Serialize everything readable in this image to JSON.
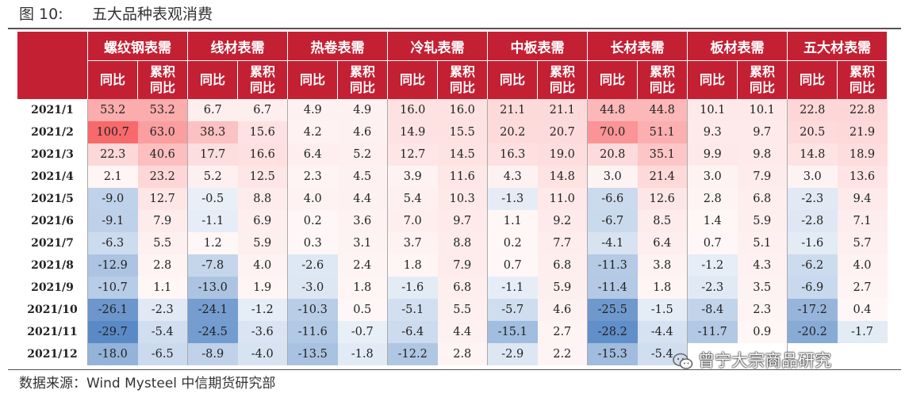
{
  "figure": {
    "number": "图 10:",
    "title": "五大品种表观消费"
  },
  "source": "数据来源：Wind Mysteel 中信期货研究部",
  "watermark": "曾宁大宗商品研究",
  "table": {
    "groups": [
      "螺纹钢表需",
      "线材表需",
      "热卷表需",
      "冷轧表需",
      "中板表需",
      "长材表需",
      "板材表需",
      "五大材表需"
    ],
    "sub_headers": [
      "同比",
      "累积同比"
    ],
    "rows": [
      {
        "date": "2021/1",
        "values": [
          "53.2",
          "53.2",
          "6.7",
          "6.7",
          "4.9",
          "4.9",
          "16.0",
          "16.0",
          "21.1",
          "21.1",
          "44.8",
          "44.8",
          "10.1",
          "10.1",
          "22.8",
          "22.8"
        ]
      },
      {
        "date": "2021/2",
        "values": [
          "100.7",
          "63.0",
          "38.3",
          "15.6",
          "4.2",
          "4.6",
          "14.9",
          "15.5",
          "20.2",
          "20.7",
          "70.0",
          "51.1",
          "9.3",
          "9.7",
          "20.5",
          "21.9"
        ]
      },
      {
        "date": "2021/3",
        "values": [
          "22.3",
          "40.6",
          "17.7",
          "16.6",
          "6.4",
          "5.2",
          "12.7",
          "14.5",
          "16.3",
          "19.0",
          "20.8",
          "35.1",
          "9.9",
          "9.8",
          "14.8",
          "18.9"
        ]
      },
      {
        "date": "2021/4",
        "values": [
          "2.1",
          "23.2",
          "5.2",
          "12.5",
          "2.3",
          "4.5",
          "3.9",
          "11.6",
          "4.3",
          "14.8",
          "3.0",
          "21.4",
          "3.0",
          "7.9",
          "3.0",
          "13.6"
        ]
      },
      {
        "date": "2021/5",
        "values": [
          "-9.0",
          "12.7",
          "-0.5",
          "8.8",
          "4.0",
          "4.4",
          "5.4",
          "10.3",
          "-1.3",
          "11.0",
          "-6.6",
          "12.6",
          "2.8",
          "6.8",
          "-2.3",
          "9.4"
        ]
      },
      {
        "date": "2021/6",
        "values": [
          "-9.1",
          "7.9",
          "-1.1",
          "6.9",
          "0.2",
          "3.6",
          "7.0",
          "9.7",
          "1.1",
          "9.2",
          "-6.7",
          "8.5",
          "1.4",
          "5.9",
          "-2.8",
          "7.1"
        ]
      },
      {
        "date": "2021/7",
        "values": [
          "-6.3",
          "5.5",
          "1.2",
          "5.9",
          "0.3",
          "3.1",
          "3.7",
          "8.8",
          "0.2",
          "7.7",
          "-4.1",
          "6.4",
          "0.7",
          "5.1",
          "-1.6",
          "5.7"
        ]
      },
      {
        "date": "2021/8",
        "values": [
          "-12.9",
          "2.8",
          "-7.8",
          "4.0",
          "-2.6",
          "2.4",
          "1.8",
          "7.9",
          "0.7",
          "6.8",
          "-11.3",
          "3.8",
          "-1.2",
          "4.3",
          "-6.2",
          "4.0"
        ]
      },
      {
        "date": "2021/9",
        "values": [
          "-10.7",
          "1.1",
          "-13.0",
          "1.9",
          "-3.0",
          "1.8",
          "-1.6",
          "6.8",
          "-1.1",
          "5.9",
          "-11.4",
          "1.8",
          "-2.3",
          "3.5",
          "-6.9",
          "2.7"
        ]
      },
      {
        "date": "2021/10",
        "values": [
          "-26.1",
          "-2.3",
          "-24.1",
          "-1.2",
          "-10.3",
          "0.5",
          "-5.1",
          "5.5",
          "-5.7",
          "4.6",
          "-25.5",
          "-1.5",
          "-8.4",
          "2.3",
          "-17.2",
          "0.4"
        ]
      },
      {
        "date": "2021/11",
        "values": [
          "-29.7",
          "-5.4",
          "-24.5",
          "-3.6",
          "-11.6",
          "-0.7",
          "-6.4",
          "4.4",
          "-15.1",
          "2.7",
          "-28.2",
          "-4.4",
          "-11.7",
          "0.9",
          "-20.2",
          "-1.7"
        ]
      },
      {
        "date": "2021/12",
        "values": [
          "-18.0",
          "-6.5",
          "-8.9",
          "-4.0",
          "-13.5",
          "-1.8",
          "-12.2",
          "2.8",
          "-2.9",
          "2.2",
          "-15.3",
          "-5.4",
          "",
          "",
          "",
          " "
        ]
      }
    ]
  },
  "colors": {
    "header_bg": "#c42033",
    "header_text": "#ffffff",
    "positive_max": "#f8696b",
    "negative_max": "#5a8ac6",
    "neutral": "#ffffff"
  }
}
